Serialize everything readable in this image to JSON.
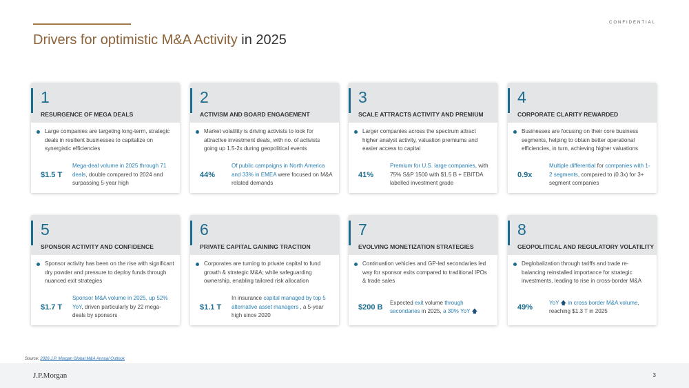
{
  "header": {
    "confidential": "CONFIDENTIAL",
    "title_accent": "Drivers for optimistic M&A Activity",
    "title_plain": " in 2025"
  },
  "cards": [
    {
      "number": "1",
      "heading": "RESURGENCE OF MEGA DEALS",
      "bullet": "Large companies are targeting long-term, strategic deals in resilient businesses to capitalize on synergistic efficiencies",
      "stat": "$1.5 T",
      "desc": [
        {
          "t": "Mega-deal volume in 2025 through 71 deals",
          "hl": true
        },
        {
          "t": ", double compared to 2024 and surpassing 5-year high",
          "hl": false
        }
      ]
    },
    {
      "number": "2",
      "heading": "ACTIVISM AND BOARD ENGAGEMENT",
      "bullet": "Market volatility is driving activists to look for attractive investment deals, with no. of activists going up 1.5-2x during geopolitical events",
      "stat": "44%",
      "desc": [
        {
          "t": "Of public campaigns in North America and 33% in EMEA",
          "hl": true
        },
        {
          "t": " were focused on M&A related demands",
          "hl": false
        }
      ]
    },
    {
      "number": "3",
      "heading": "SCALE ATTRACTS ACTIVITY AND PREMIUM",
      "bullet": "Larger companies across the spectrum attract higher analyst activity, valuation premiums and easier access to capital",
      "stat": "41%",
      "desc": [
        {
          "t": "Premium for U.S. large companies",
          "hl": true
        },
        {
          "t": ", with 75% S&P 1500 with $1.5 B + EBITDA labelled investment grade",
          "hl": false
        }
      ]
    },
    {
      "number": "4",
      "heading": "CORPORATE CLARITY REWARDED",
      "bullet": "Businesses are focusing on their core business segments, helping to obtain better operational efficiencies, in turn, achieving higher valuations",
      "stat": "0.9x",
      "desc": [
        {
          "t": "Multiple differential",
          "hl": true
        },
        {
          "t": " for ",
          "hl": false
        },
        {
          "t": "companies with 1-2 segments",
          "hl": true
        },
        {
          "t": ", compared to (0.3x) for 3+ segment companies",
          "hl": false
        }
      ]
    },
    {
      "number": "5",
      "heading": "SPONSOR ACTIVITY AND CONFIDENCE",
      "bullet": "Sponsor activity has been on the rise with significant dry powder and pressure to deploy funds through nuanced exit strategies",
      "stat": "$1.7 T",
      "desc": [
        {
          "t": "Sponsor M&A volume in 2025, up 52% YoY",
          "hl": true
        },
        {
          "t": ", driven particularly by 22 mega-deals by sponsors",
          "hl": false
        }
      ]
    },
    {
      "number": "6",
      "heading": "PRIVATE CAPITAL GAINING TRACTION",
      "bullet": "Corporates are turning to private capital to fund growth & strategic M&A; while safeguarding ownership, enabling tailored risk allocation",
      "stat": "$1.1 T",
      "desc": [
        {
          "t": "In insurance ",
          "hl": false
        },
        {
          "t": "capital managed by top 5 alternative asset managers",
          "hl": true
        },
        {
          "t": " , a 5-year high since 2020",
          "hl": false
        }
      ]
    },
    {
      "number": "7",
      "heading": "EVOLVING MONETIZATION STRATEGIES",
      "bullet": "Continuation vehicles and GP-led secondaries led way for sponsor exits compared to traditional IPOs & trade sales",
      "stat": "$200 B",
      "desc": [
        {
          "t": "Expected ",
          "hl": false
        },
        {
          "t": "exit",
          "hl": true
        },
        {
          "t": " volume ",
          "hl": false
        },
        {
          "t": "through secondaries",
          "hl": true
        },
        {
          "t": " in 2025, ",
          "hl": false
        },
        {
          "t": "a 30% YoY ",
          "hl": true
        },
        {
          "t": "🡅",
          "arrow": true
        }
      ]
    },
    {
      "number": "8",
      "heading": "GEOPOLITICAL AND REGULATORY VOLATILITY",
      "bullet": "Deglobalization through tariffs and trade re-balancing reinstalled importance for strategic investments, leading to rise in cross-border M&A",
      "stat": "49%",
      "desc": [
        {
          "t": "YoY ",
          "hl": true
        },
        {
          "t": "🡅",
          "arrow": true
        },
        {
          "t": " in cross border M&A volume",
          "hl": true
        },
        {
          "t": ", reaching $1.3 T in 2025",
          "hl": false
        }
      ]
    }
  ],
  "source": {
    "label": "Source: ",
    "link": "2026 J.P. Morgan Global M&A Annual Outlook"
  },
  "footer": {
    "logo": "J.P.Morgan",
    "page": "3"
  }
}
